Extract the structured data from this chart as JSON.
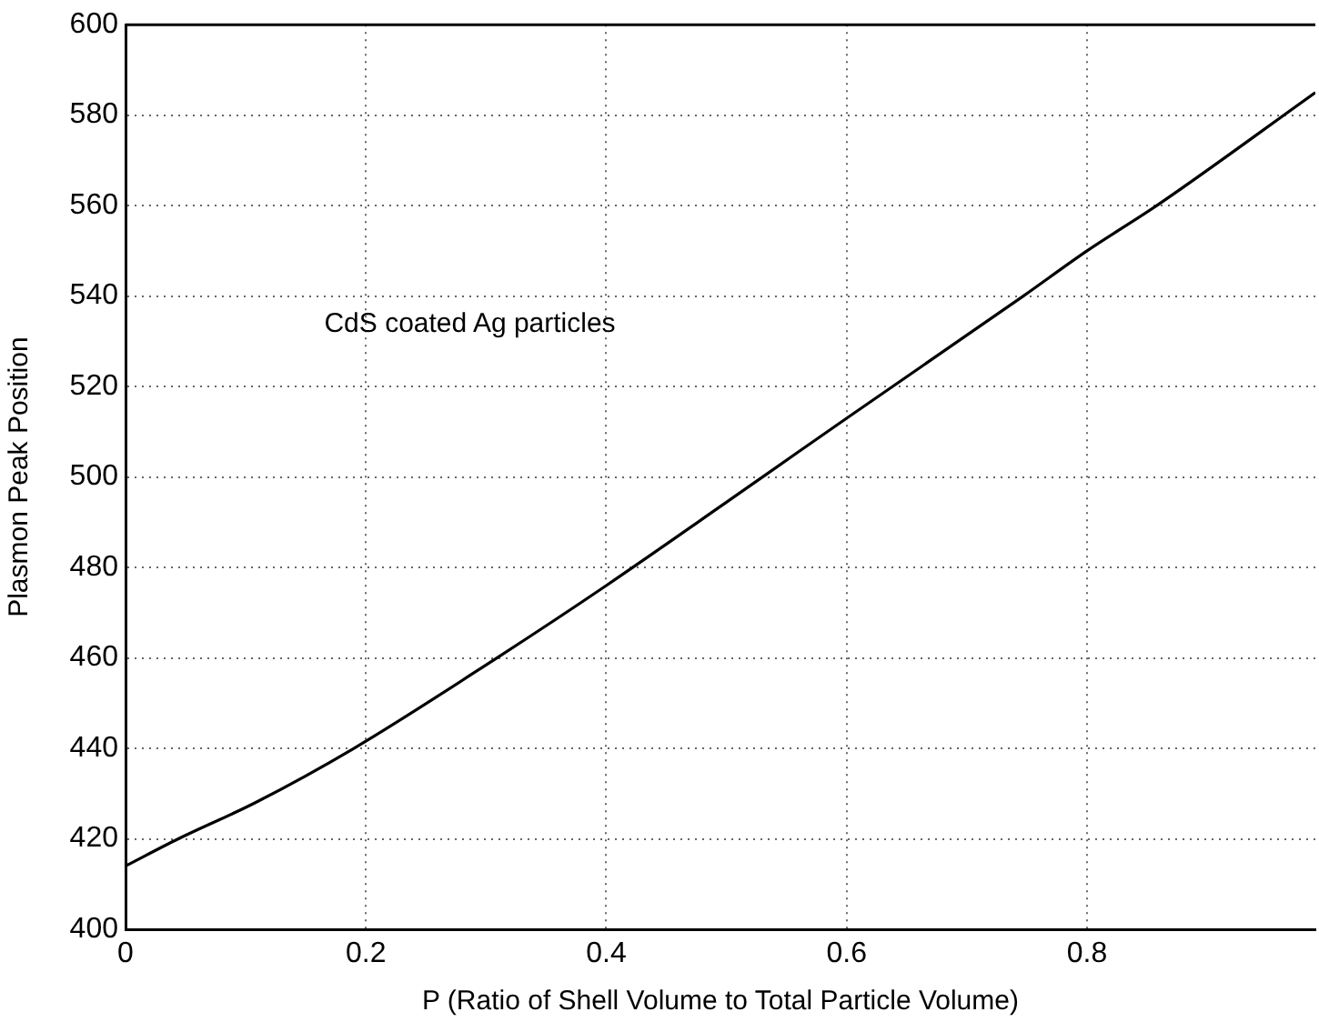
{
  "chart_data": {
    "type": "line",
    "xlabel": "P (Ratio of Shell Volume to Total Particle Volume)",
    "ylabel": "Plasmon Peak Position",
    "annotations": [
      "CdS coated Ag particles"
    ],
    "x": [
      0,
      0.044,
      0.108,
      0.19,
      0.309,
      0.4,
      0.53,
      0.6,
      0.747,
      0.8,
      0.858,
      0.99
    ],
    "series": [
      {
        "color": "#000000",
        "values": [
          414,
          420,
          428,
          440,
          460,
          476,
          500,
          513,
          540,
          550,
          560,
          585
        ]
      }
    ],
    "xlim": [
      0,
      0.99
    ],
    "xticks": [
      0,
      0.2,
      0.4,
      0.6,
      0.8
    ],
    "ylim": [
      400,
      600
    ],
    "yticks": [
      400,
      420,
      440,
      460,
      480,
      500,
      520,
      540,
      560,
      580,
      600
    ],
    "grid": true,
    "legend": false,
    "marker": "none",
    "line_style": "solid"
  }
}
